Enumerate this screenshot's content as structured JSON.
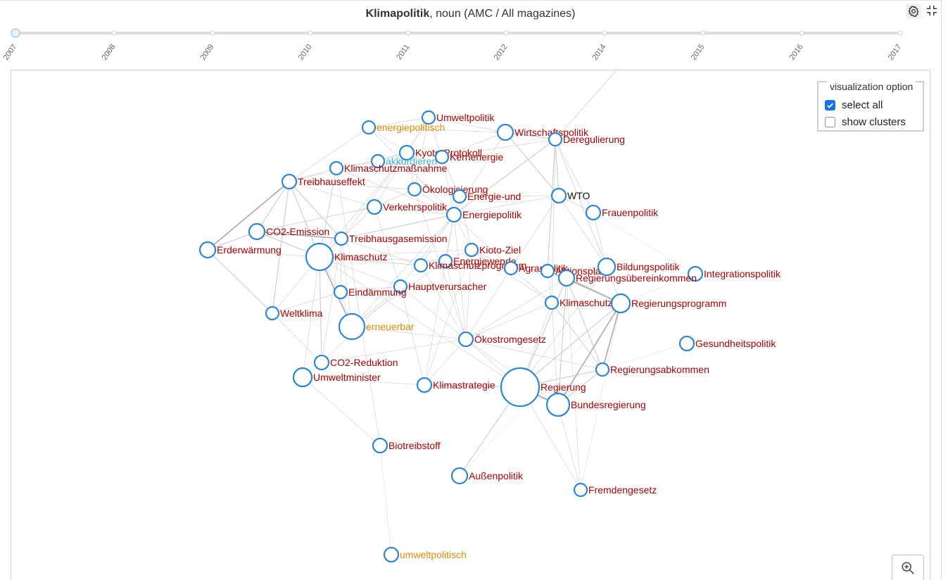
{
  "header": {
    "term": "Klimapolitik",
    "descriptor": ", noun (AMC / All magazines)",
    "settings_icon": "gear-icon",
    "collapse_icon": "collapse-icon"
  },
  "timeline": {
    "years": [
      "2007",
      "2008",
      "2009",
      "2010",
      "2011",
      "2012",
      "2014",
      "2015",
      "2016",
      "2017"
    ],
    "selected_year": "2007"
  },
  "options": {
    "legend": "visualization option",
    "select_all_label": "select all",
    "select_all_checked": true,
    "show_clusters_label": "show clusters",
    "show_clusters_checked": false
  },
  "zoom": {
    "icon": "zoom-in-icon"
  },
  "colors": {
    "node_stroke": "#2a86d8",
    "label_red": "#b00000",
    "label_orange": "#e68a00",
    "label_cyan": "#3bb4d8",
    "label_black": "#111111",
    "edge": "#b0b0b0",
    "timeline_track": "#dcdcdc"
  },
  "graph": {
    "nodes": [
      {
        "id": "Umweltpolitik",
        "label": "Umweltpolitik",
        "color": "red"
      },
      {
        "id": "energiepolitisch",
        "label": "energiepolitisch",
        "color": "orange"
      },
      {
        "id": "Wirtschaftspolitik",
        "label": "Wirtschaftspolitik",
        "color": "red"
      },
      {
        "id": "Deregulierung",
        "label": "Deregulierung",
        "color": "red"
      },
      {
        "id": "Kyoto-Protokoll",
        "label": "Kyoto-Protokoll",
        "color": "red"
      },
      {
        "id": "akkordieren",
        "label": "akkordieren",
        "color": "cyan"
      },
      {
        "id": "Kernenergie",
        "label": "Kernenergie",
        "color": "red"
      },
      {
        "id": "Klimaschutzmaßnahme",
        "label": "Klimaschutzmaßnahme",
        "color": "red"
      },
      {
        "id": "Treibhauseffekt",
        "label": "Treibhauseffekt",
        "color": "red"
      },
      {
        "id": "Ökologisierung",
        "label": "Ökologisierung",
        "color": "red"
      },
      {
        "id": "Energie-und",
        "label": "Energie-und",
        "color": "red"
      },
      {
        "id": "WTO",
        "label": "WTO",
        "color": "black"
      },
      {
        "id": "Verkehrspolitik",
        "label": "Verkehrspolitik",
        "color": "red"
      },
      {
        "id": "Energiepolitik",
        "label": "Energiepolitik",
        "color": "red"
      },
      {
        "id": "Frauenpolitik",
        "label": "Frauenpolitik",
        "color": "red"
      },
      {
        "id": "CO2-Emission",
        "label": "CO2-Emission",
        "color": "red"
      },
      {
        "id": "Treibhausgasemission",
        "label": "Treibhausgasemission",
        "color": "red"
      },
      {
        "id": "Erderwärmung",
        "label": "Erderwärmung",
        "color": "red"
      },
      {
        "id": "Klimaschutz",
        "label": "Klimaschutz",
        "color": "red"
      },
      {
        "id": "Kioto-Ziel",
        "label": "Kioto-Ziel",
        "color": "red"
      },
      {
        "id": "Energiewende",
        "label": "Energiewende",
        "color": "red"
      },
      {
        "id": "Klimaschutzprogramm",
        "label": "Klimaschutzprogramm",
        "color": "red"
      },
      {
        "id": "Agrarpolitik",
        "label": "Agrarpolitik",
        "color": "red"
      },
      {
        "id": "Aktionsplan",
        "label": "Aktionsplan",
        "color": "red"
      },
      {
        "id": "Bildungspolitik",
        "label": "Bildungspolitik",
        "color": "red"
      },
      {
        "id": "Integrationspolitik",
        "label": "Integrationspolitik",
        "color": "red"
      },
      {
        "id": "Regierungsübereinkommen",
        "label": "Regierungsübereinkommen",
        "color": "red"
      },
      {
        "id": "Hauptverursacher",
        "label": "Hauptverursacher",
        "color": "red"
      },
      {
        "id": "Eindämmung",
        "label": "Eindämmung",
        "color": "red"
      },
      {
        "id": "Klimaschutzziel",
        "label": "Klimaschutzziel",
        "color": "red"
      },
      {
        "id": "Regierungsprogramm",
        "label": "Regierungsprogramm",
        "color": "red"
      },
      {
        "id": "Weltklima",
        "label": "Weltklima",
        "color": "red"
      },
      {
        "id": "erneuerbar",
        "label": "erneuerbar",
        "color": "orange"
      },
      {
        "id": "Ökostromgesetz",
        "label": "Ökostromgesetz",
        "color": "red"
      },
      {
        "id": "Gesundheitspolitik",
        "label": "Gesundheitspolitik",
        "color": "red"
      },
      {
        "id": "CO2-Reduktion",
        "label": "CO2-Reduktion",
        "color": "red"
      },
      {
        "id": "Regierungsabkommen",
        "label": "Regierungsabkommen",
        "color": "red"
      },
      {
        "id": "Umweltminister",
        "label": "Umweltminister",
        "color": "red"
      },
      {
        "id": "Klimastrategie",
        "label": "Klimastrategie",
        "color": "red"
      },
      {
        "id": "Regierung",
        "label": "Regierung",
        "color": "red"
      },
      {
        "id": "Bundesregierung",
        "label": "Bundesregierung",
        "color": "red"
      },
      {
        "id": "Biotreibstoff",
        "label": "Biotreibstoff",
        "color": "red"
      },
      {
        "id": "Außenpolitik",
        "label": "Außenpolitik",
        "color": "red"
      },
      {
        "id": "Fremdengesetz",
        "label": "Fremdengesetz",
        "color": "red"
      },
      {
        "id": "umweltpolitisch",
        "label": "umweltpolitisch",
        "color": "orange"
      }
    ]
  }
}
